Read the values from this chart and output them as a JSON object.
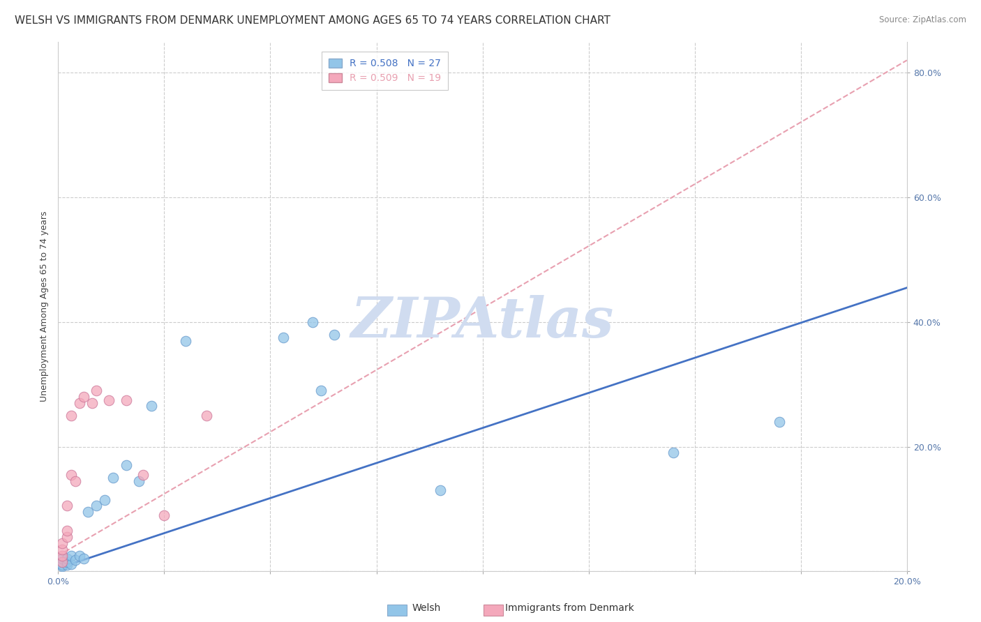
{
  "title": "WELSH VS IMMIGRANTS FROM DENMARK UNEMPLOYMENT AMONG AGES 65 TO 74 YEARS CORRELATION CHART",
  "source": "Source: ZipAtlas.com",
  "ylabel": "Unemployment Among Ages 65 to 74 years",
  "xlim": [
    0.0,
    0.2
  ],
  "ylim": [
    0.0,
    0.85
  ],
  "xticks": [
    0.0,
    0.025,
    0.05,
    0.075,
    0.1,
    0.125,
    0.15,
    0.175,
    0.2
  ],
  "xtick_labels": [
    "0.0%",
    "",
    "",
    "",
    "",
    "",
    "",
    "",
    "20.0%"
  ],
  "yticks": [
    0.0,
    0.2,
    0.4,
    0.6,
    0.8
  ],
  "ytick_labels": [
    "",
    "20.0%",
    "40.0%",
    "60.0%",
    "80.0%"
  ],
  "welsh_color": "#92C5E8",
  "denmark_color": "#F4A8BB",
  "welsh_line_color": "#4472C4",
  "denmark_line_color": "#E8A0B0",
  "welsh_R": 0.508,
  "welsh_N": 27,
  "denmark_R": 0.509,
  "denmark_N": 19,
  "background_color": "#FFFFFF",
  "grid_color": "#CCCCCC",
  "watermark": "ZIPAtlas",
  "watermark_color": "#D0DCF0",
  "welsh_x": [
    0.001,
    0.001,
    0.001,
    0.001,
    0.002,
    0.002,
    0.002,
    0.003,
    0.003,
    0.004,
    0.005,
    0.006,
    0.007,
    0.009,
    0.011,
    0.013,
    0.016,
    0.019,
    0.022,
    0.03,
    0.053,
    0.062,
    0.06,
    0.065,
    0.09,
    0.145,
    0.17
  ],
  "welsh_y": [
    0.008,
    0.015,
    0.01,
    0.02,
    0.01,
    0.015,
    0.02,
    0.012,
    0.025,
    0.018,
    0.025,
    0.02,
    0.095,
    0.105,
    0.115,
    0.15,
    0.17,
    0.145,
    0.265,
    0.37,
    0.375,
    0.29,
    0.4,
    0.38,
    0.13,
    0.19,
    0.24
  ],
  "denmark_x": [
    0.001,
    0.001,
    0.001,
    0.001,
    0.002,
    0.002,
    0.002,
    0.003,
    0.003,
    0.004,
    0.005,
    0.006,
    0.008,
    0.009,
    0.012,
    0.016,
    0.02,
    0.025,
    0.035
  ],
  "denmark_y": [
    0.015,
    0.025,
    0.035,
    0.045,
    0.055,
    0.065,
    0.105,
    0.155,
    0.25,
    0.145,
    0.27,
    0.28,
    0.27,
    0.29,
    0.275,
    0.275,
    0.155,
    0.09,
    0.25
  ],
  "welsh_line_x0": 0.0,
  "welsh_line_x1": 0.2,
  "welsh_line_y0": 0.005,
  "welsh_line_y1": 0.455,
  "dk_line_x0": 0.0,
  "dk_line_x1": 0.2,
  "dk_line_y0": 0.025,
  "dk_line_y1": 0.82,
  "title_fontsize": 11,
  "axis_fontsize": 9,
  "tick_fontsize": 9,
  "legend_fontsize": 10,
  "marker_size": 110
}
